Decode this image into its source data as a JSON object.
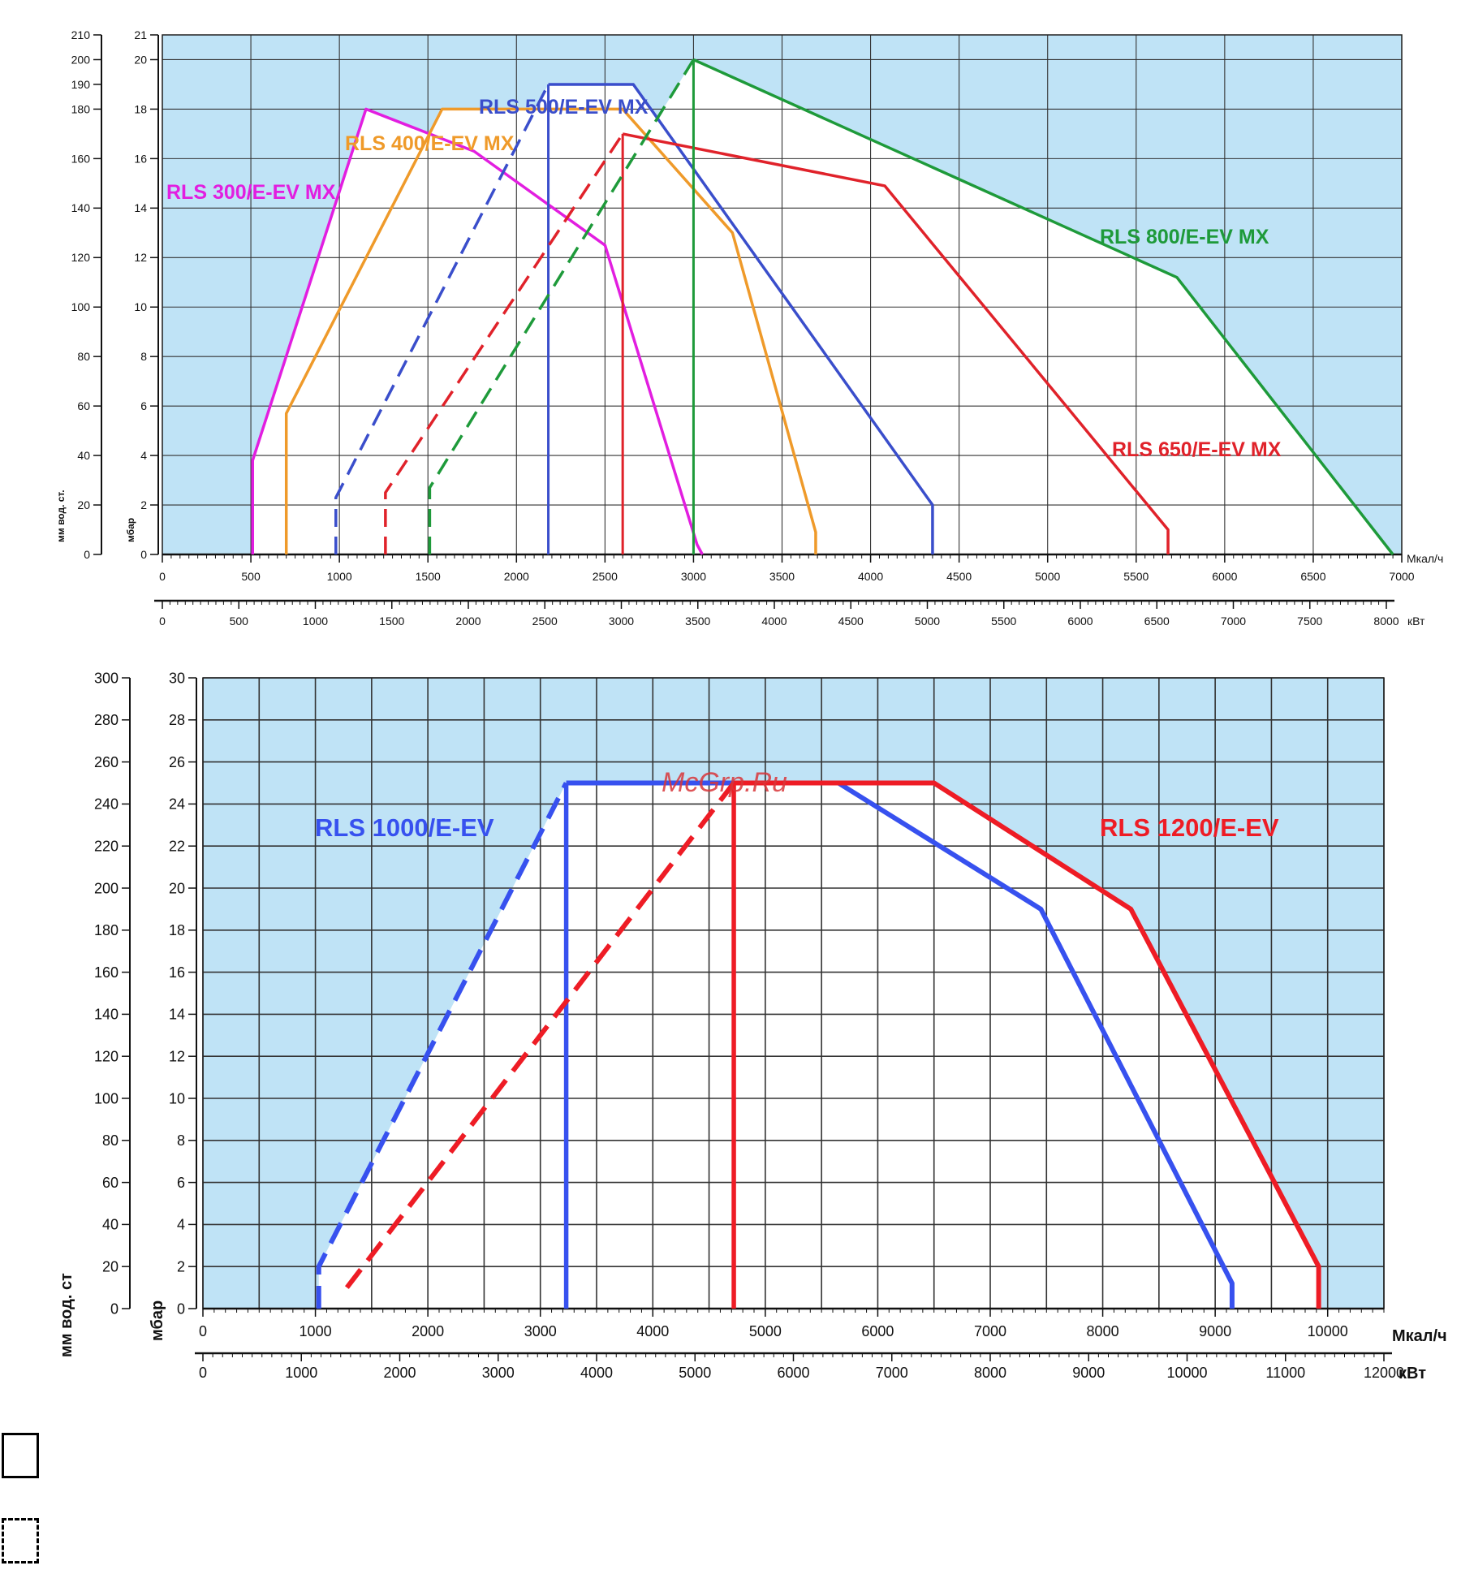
{
  "watermark": "McGrp.Ru",
  "legend": {
    "solid_box": "",
    "dashed_box": ""
  },
  "chart_data": [
    {
      "type": "line",
      "title": "",
      "x_units_primary": "Мкал/ч",
      "x_units_secondary": "кВт",
      "y_label_mm": "мм вод. ст.",
      "y_label_mbar": "мбар",
      "xlim": [
        0,
        7000
      ],
      "xlim_secondary": [
        0,
        8000
      ],
      "ylim": [
        0,
        21
      ],
      "ylim_mm": [
        0,
        210
      ],
      "x_ticks": [
        0,
        500,
        1000,
        1500,
        2000,
        2500,
        3000,
        3500,
        4000,
        4500,
        5000,
        5500,
        6000,
        6500,
        7000
      ],
      "x_ticks_secondary": [
        0,
        500,
        1000,
        1500,
        2000,
        2500,
        3000,
        3500,
        4000,
        4500,
        5000,
        5500,
        6000,
        6500,
        7000,
        7500,
        8000
      ],
      "y_ticks_mbar": [
        0,
        2,
        4,
        6,
        8,
        10,
        12,
        14,
        16,
        18,
        20,
        21
      ],
      "y_ticks_mm": [
        0,
        20,
        40,
        60,
        80,
        100,
        120,
        140,
        160,
        180,
        190,
        200,
        210
      ],
      "series": [
        {
          "name": "RLS 300/E-EV MX",
          "color": "#e21ee0",
          "points": [
            [
              510,
              0
            ],
            [
              510,
              3.8
            ],
            [
              1150,
              18
            ],
            [
              1760,
              16.3
            ],
            [
              2500,
              12.5
            ],
            [
              3020,
              0.4
            ],
            [
              3050,
              0
            ]
          ],
          "dashed": [],
          "vline": 1150
        },
        {
          "name": "RLS 400/E-EV MX",
          "color": "#ef9a2a",
          "points": [
            [
              700,
              0
            ],
            [
              700,
              5.7
            ],
            [
              1580,
              18
            ],
            [
              2600,
              18
            ],
            [
              3220,
              13
            ],
            [
              3690,
              0.9
            ],
            [
              3690,
              0
            ]
          ],
          "dashed": [],
          "vline": 1580
        },
        {
          "name": "RLS 500/E-EV MX",
          "color": "#3a4ecb",
          "points": [
            [
              2180,
              19
            ],
            [
              2660,
              19
            ],
            [
              4350,
              2
            ],
            [
              4350,
              0
            ]
          ],
          "dashed": [
            [
              980,
              0
            ],
            [
              980,
              2.3
            ],
            [
              2180,
              19
            ]
          ],
          "vline": 2180
        },
        {
          "name": "RLS 650/E-EV MX",
          "color": "#e0222a",
          "points": [
            [
              2600,
              17
            ],
            [
              4080,
              14.9
            ],
            [
              5680,
              1
            ],
            [
              5680,
              0
            ]
          ],
          "dashed": [
            [
              1260,
              0
            ],
            [
              1260,
              2.5
            ],
            [
              2600,
              17
            ]
          ],
          "vline": 2600
        },
        {
          "name": "RLS 800/E-EV MX",
          "color": "#1e9a3a",
          "points": [
            [
              3000,
              20
            ],
            [
              5730,
              11.2
            ],
            [
              6950,
              0
            ]
          ],
          "dashed": [
            [
              1510,
              0
            ],
            [
              1510,
              2.7
            ],
            [
              3000,
              20
            ]
          ],
          "vline": 3000
        }
      ],
      "labels": {
        "RLS 300/E-EV MX": "RLS 300/E-EV MX",
        "RLS 400/E-EV MX": "RLS 400/E-EV MX",
        "RLS 500/E-EV MX": "RLS 500/E-EV MX",
        "RLS 650/E-EV MX": "RLS 650/E-EV MX",
        "RLS 800/E-EV MX": "RLS 800/E-EV MX"
      }
    },
    {
      "type": "line",
      "title": "",
      "x_units_primary": "Мкал/ч",
      "x_units_secondary": "кВт",
      "y_label_mm": "мм вод. ст",
      "y_label_mbar": "мбар",
      "xlim": [
        0,
        10500
      ],
      "xlim_secondary": [
        0,
        12000
      ],
      "ylim": [
        0,
        30
      ],
      "ylim_mm": [
        0,
        300
      ],
      "x_ticks": [
        0,
        1000,
        2000,
        3000,
        4000,
        5000,
        6000,
        7000,
        8000,
        9000,
        10000
      ],
      "x_ticks_secondary": [
        0,
        1000,
        2000,
        3000,
        4000,
        5000,
        6000,
        7000,
        8000,
        9000,
        10000,
        11000,
        12000
      ],
      "y_ticks_mbar": [
        0,
        2,
        4,
        6,
        8,
        10,
        12,
        14,
        16,
        18,
        20,
        22,
        24,
        26,
        28,
        30
      ],
      "y_ticks_mm": [
        0,
        20,
        40,
        60,
        80,
        100,
        120,
        140,
        160,
        180,
        200,
        220,
        240,
        260,
        280,
        300
      ],
      "series": [
        {
          "name": "RLS 1000/E-EV",
          "color": "#3751ef",
          "points": [
            [
              3230,
              25
            ],
            [
              5650,
              25
            ],
            [
              7450,
              19
            ],
            [
              9150,
              1.2
            ],
            [
              9150,
              0
            ]
          ],
          "dashed": [
            [
              1030,
              0
            ],
            [
              1030,
              2
            ],
            [
              3230,
              25
            ]
          ],
          "vline": 3230
        },
        {
          "name": "RLS 1200/E-EV",
          "color": "#ee1c25",
          "points": [
            [
              4720,
              25
            ],
            [
              6500,
              25
            ],
            [
              8250,
              19
            ],
            [
              9920,
              2
            ],
            [
              9920,
              0
            ]
          ],
          "dashed": [
            [
              1280,
              1
            ],
            [
              4720,
              25
            ]
          ],
          "vline": 4720
        }
      ],
      "labels": {
        "RLS 1000/E-EV": "RLS 1000/E-EV",
        "RLS 1200/E-EV": "RLS 1200/E-EV"
      }
    }
  ]
}
